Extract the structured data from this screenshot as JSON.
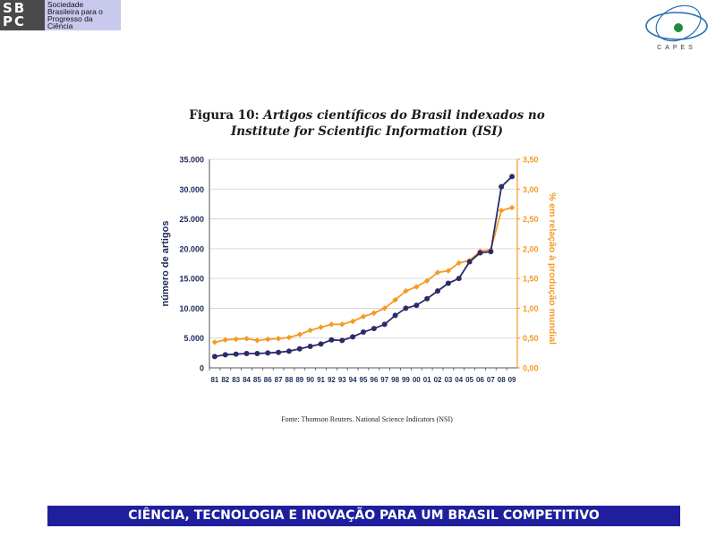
{
  "header": {
    "sbpc_logo": {
      "mark_line1": "SB",
      "mark_line2": "PC",
      "text": "Sociedade\nBrasileira para o\nProgresso da\nCiência"
    },
    "capes_logo": {
      "text": "CAPES"
    }
  },
  "figure": {
    "title_prefix": "Figura 10:",
    "title_italic_line1": "Artigos científicos do Brasil indexados no",
    "title_italic_line2": "Institute for Scientific Information (ISI)",
    "source": "Fonte: Thomson Reuters. National Science Indicators (NSI)"
  },
  "footer": {
    "banner": "CIÊNCIA, TECNOLOGIA E INOVAÇÃO PARA UM BRASIL COMPETITIVO"
  },
  "colors": {
    "articles": "#2b2b6b",
    "percent": "#f59a23",
    "axis_left_text": "#1f2a5a",
    "axis_right_text": "#f59a23",
    "banner": "#1f1f9e"
  },
  "chart_data": {
    "type": "line",
    "categories": [
      "81",
      "82",
      "83",
      "84",
      "85",
      "86",
      "87",
      "88",
      "89",
      "90",
      "91",
      "92",
      "93",
      "94",
      "95",
      "96",
      "97",
      "98",
      "99",
      "00",
      "01",
      "02",
      "03",
      "04",
      "05",
      "06",
      "07",
      "08",
      "09"
    ],
    "ylabel_left": "número de artigos",
    "ylabel_right": "% em relação à produção mundial",
    "ylim_left": [
      0,
      35000
    ],
    "ylim_right": [
      0,
      3.5
    ],
    "yticks_left": [
      "0",
      "5.000",
      "10.000",
      "15.000",
      "20.000",
      "25.000",
      "30.000",
      "35.000"
    ],
    "yticks_right": [
      "0,00",
      "0,50",
      "1,00",
      "1,50",
      "2,00",
      "2,50",
      "3,00",
      "3,50"
    ],
    "grid": true,
    "legend": "none",
    "series": [
      {
        "axis": "left",
        "values": [
          1900,
          2200,
          2300,
          2400,
          2400,
          2500,
          2600,
          2800,
          3200,
          3600,
          4000,
          4700,
          4600,
          5200,
          6000,
          6600,
          7300,
          8800,
          10000,
          10500,
          11600,
          12900,
          14200,
          15000,
          17800,
          19300,
          19500,
          30400,
          32100
        ]
      },
      {
        "axis": "right",
        "values": [
          0.43,
          0.47,
          0.48,
          0.49,
          0.46,
          0.48,
          0.49,
          0.51,
          0.56,
          0.63,
          0.68,
          0.73,
          0.73,
          0.78,
          0.86,
          0.92,
          1.0,
          1.14,
          1.29,
          1.36,
          1.46,
          1.6,
          1.63,
          1.76,
          1.8,
          1.96,
          1.98,
          2.64,
          2.69
        ]
      }
    ]
  }
}
